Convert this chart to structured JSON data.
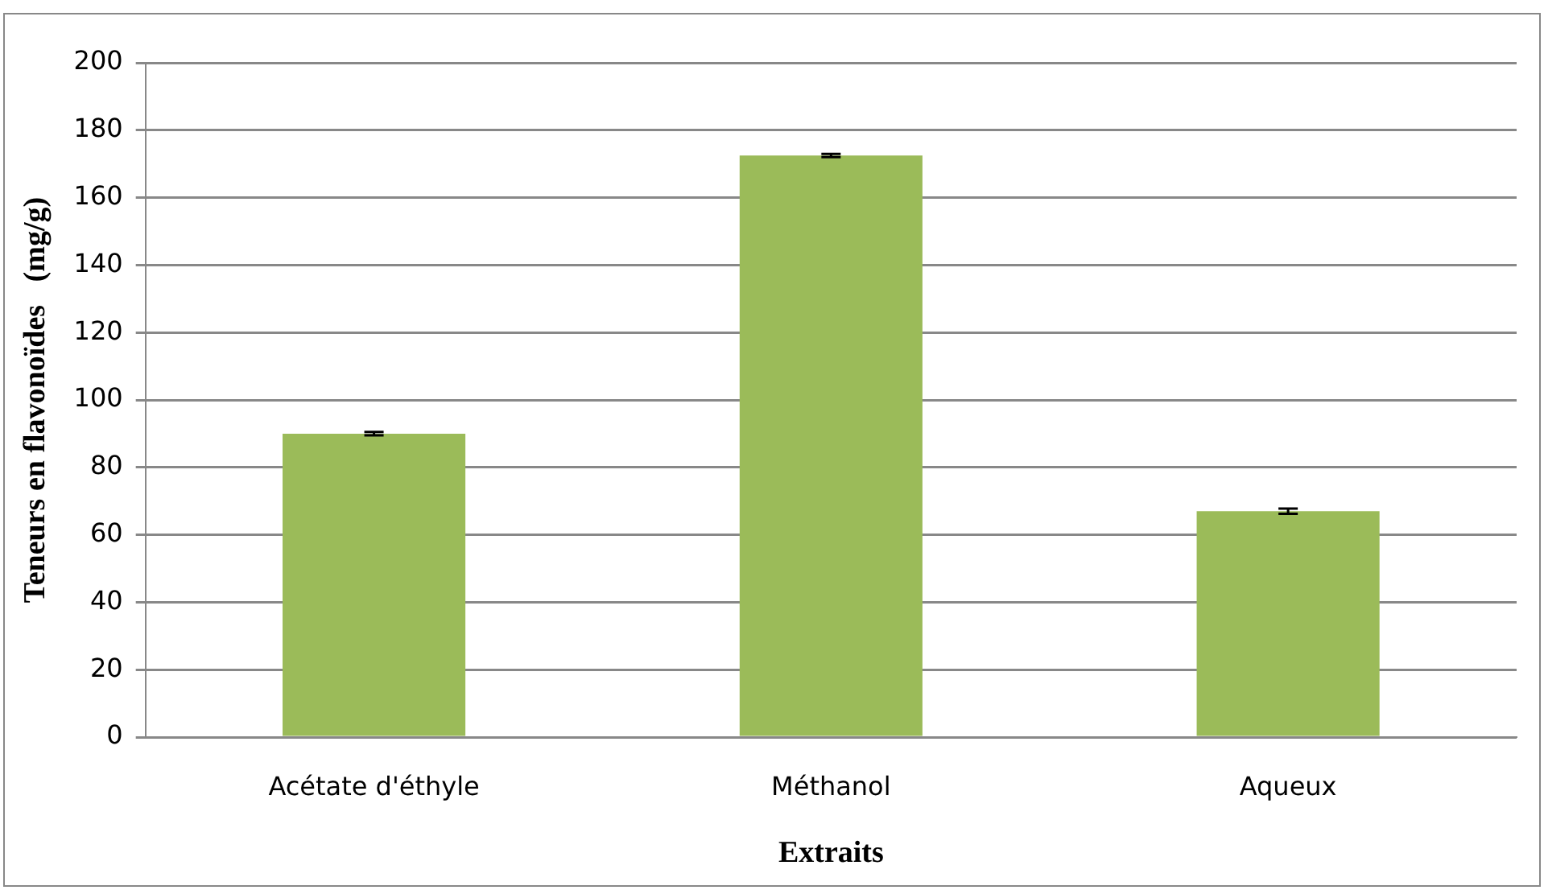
{
  "chart_data": {
    "type": "bar",
    "xlabel": "Extraits",
    "ylabel": "Teneurs en flavonoïdes   (mg/g)",
    "categories": [
      "Acétate d'éthyle",
      "Méthanol",
      "Aqueux"
    ],
    "series": [
      {
        "color": "#9bbb59",
        "values": [
          90,
          172.5,
          67
        ],
        "errors": [
          0.5,
          0.5,
          0.8
        ]
      }
    ],
    "ylim": [
      0,
      200
    ],
    "yticks": [
      0,
      20,
      40,
      60,
      80,
      100,
      120,
      140,
      160,
      180,
      200
    ],
    "grid": "y",
    "legend": false
  }
}
